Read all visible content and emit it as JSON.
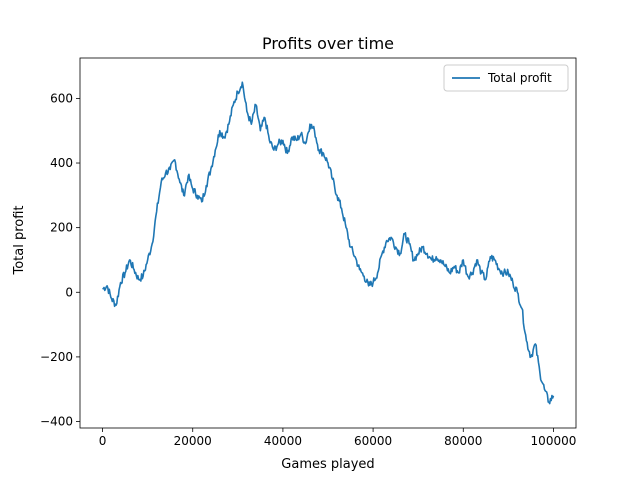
{
  "chart_data": {
    "type": "line",
    "title": "Profits over time",
    "xlabel": "Games played",
    "ylabel": "Total profit",
    "xlim": [
      -5000,
      105000
    ],
    "ylim": [
      -420,
      725
    ],
    "xticks": [
      0,
      20000,
      40000,
      60000,
      80000,
      100000
    ],
    "xtick_labels": [
      "0",
      "20000",
      "40000",
      "60000",
      "80000",
      "100000"
    ],
    "yticks": [
      -400,
      -200,
      0,
      200,
      400,
      600
    ],
    "ytick_labels": [
      "−400",
      "−200",
      "0",
      "200",
      "400",
      "600"
    ],
    "grid": false,
    "legend": {
      "position": "top-right",
      "entries": [
        "Total profit"
      ]
    },
    "series": [
      {
        "name": "Total profit",
        "color": "#1f77b4",
        "x": [
          0,
          1000,
          2000,
          3000,
          4000,
          5000,
          6000,
          7000,
          8000,
          9000,
          10000,
          11000,
          12000,
          13000,
          14000,
          15000,
          16000,
          17000,
          18000,
          19000,
          20000,
          21000,
          22000,
          23000,
          24000,
          25000,
          26000,
          27000,
          28000,
          29000,
          30000,
          31000,
          32000,
          33000,
          34000,
          35000,
          36000,
          37000,
          38000,
          39000,
          40000,
          41000,
          42000,
          43000,
          44000,
          45000,
          46000,
          47000,
          48000,
          49000,
          50000,
          51000,
          52000,
          53000,
          54000,
          55000,
          56000,
          57000,
          58000,
          59000,
          60000,
          61000,
          62000,
          63000,
          64000,
          65000,
          66000,
          67000,
          68000,
          69000,
          70000,
          71000,
          72000,
          73000,
          74000,
          75000,
          76000,
          77000,
          78000,
          79000,
          80000,
          81000,
          82000,
          83000,
          84000,
          85000,
          86000,
          87000,
          88000,
          89000,
          90000,
          91000,
          92000,
          93000,
          94000,
          95000,
          96000,
          97000,
          98000,
          99000,
          100000
        ],
        "y": [
          10,
          20,
          -20,
          -40,
          30,
          60,
          100,
          70,
          40,
          50,
          100,
          150,
          250,
          340,
          370,
          380,
          410,
          350,
          300,
          360,
          320,
          300,
          280,
          330,
          380,
          440,
          500,
          480,
          520,
          580,
          620,
          650,
          560,
          520,
          580,
          500,
          540,
          470,
          440,
          460,
          470,
          430,
          480,
          470,
          490,
          460,
          520,
          500,
          440,
          430,
          400,
          350,
          300,
          260,
          200,
          140,
          110,
          70,
          50,
          20,
          30,
          60,
          120,
          160,
          170,
          140,
          120,
          180,
          150,
          100,
          120,
          140,
          120,
          100,
          110,
          100,
          80,
          60,
          80,
          60,
          100,
          50,
          60,
          100,
          60,
          40,
          110,
          100,
          70,
          60,
          60,
          30,
          0,
          -50,
          -150,
          -200,
          -160,
          -250,
          -300,
          -340,
          -320
        ]
      }
    ]
  }
}
